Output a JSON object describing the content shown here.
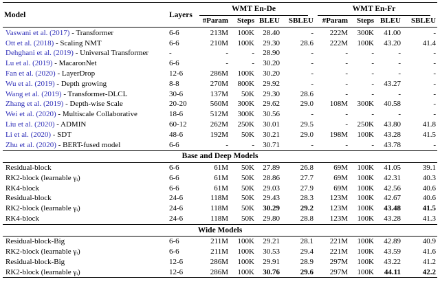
{
  "table": {
    "citation_color": "#2e2eb8",
    "col_headers": {
      "model": "Model",
      "layers": "Layers",
      "group_ende": "WMT En-De",
      "group_enfr": "WMT En-Fr",
      "subheaders": [
        "#Param",
        "Steps",
        "BLEU",
        "SBLEU",
        "#Param",
        "Steps",
        "BLEU",
        "SBLEU"
      ]
    },
    "sections": [
      {
        "header": "",
        "rows": [
          {
            "model_cite": "Vaswani et al. (2017)",
            "model_rest": " - Transformer",
            "layers": "6-6",
            "cells": [
              "213M",
              "100K",
              "28.40",
              "-",
              "222M",
              "300K",
              "41.00",
              "-"
            ],
            "bold": []
          },
          {
            "model_cite": "Ott et al. (2018)",
            "model_rest": " - Scaling NMT",
            "layers": "6-6",
            "cells": [
              "210M",
              "100K",
              "29.30",
              "28.6",
              "222M",
              "100K",
              "43.20",
              "41.4"
            ],
            "bold": []
          },
          {
            "model_cite": "Dehghani et al. (2019)",
            "model_rest": " - Universal Transformer",
            "layers": "-",
            "cells": [
              "-",
              "-",
              "28.90",
              "-",
              "-",
              "-",
              "-",
              "-"
            ],
            "bold": []
          },
          {
            "model_cite": "Lu et al. (2019)",
            "model_rest": " - MacaronNet",
            "layers": "6-6",
            "cells": [
              "-",
              "-",
              "30.20",
              "-",
              "-",
              "-",
              "-",
              "-"
            ],
            "bold": []
          },
          {
            "model_cite": "Fan et al. (2020)",
            "model_rest": " - LayerDrop",
            "layers": "12-6",
            "cells": [
              "286M",
              "100K",
              "30.20",
              "-",
              "-",
              "-",
              "-",
              "-"
            ],
            "bold": []
          },
          {
            "model_cite": "Wu et al. (2019)",
            "model_rest": " - Depth growing",
            "layers": "8-8",
            "cells": [
              "270M",
              "800K",
              "29.92",
              "-",
              "-",
              "-",
              "43.27",
              "-"
            ],
            "bold": []
          },
          {
            "model_cite": "Wang et al. (2019)",
            "model_rest": " - Transformer-DLCL",
            "layers": "30-6",
            "cells": [
              "137M",
              "50K",
              "29.30",
              "28.6",
              "-",
              "-",
              "-",
              "-"
            ],
            "bold": []
          },
          {
            "model_cite": "Zhang et al. (2019)",
            "model_rest": " - Depth-wise Scale",
            "layers": "20-20",
            "cells": [
              "560M",
              "300K",
              "29.62",
              "29.0",
              "108M",
              "300K",
              "40.58",
              "-"
            ],
            "bold": []
          },
          {
            "model_cite": "Wei et al. (2020)",
            "model_rest": " - Multiscale Collaborative",
            "layers": "18-6",
            "cells": [
              "512M",
              "300K",
              "30.56",
              "-",
              "-",
              "-",
              "-",
              "-"
            ],
            "bold": []
          },
          {
            "model_cite": "Liu et al. (2020)",
            "model_rest": " - ADMIN",
            "layers": "60-12",
            "cells": [
              "262M",
              "250K",
              "30.01",
              "29.5",
              "-",
              "250K",
              "43.80",
              "41.8"
            ],
            "bold": []
          },
          {
            "model_cite": "Li et al. (2020)",
            "model_rest": " - SDT",
            "layers": "48-6",
            "cells": [
              "192M",
              "50K",
              "30.21",
              "29.0",
              "198M",
              "100K",
              "43.28",
              "41.5"
            ],
            "bold": []
          },
          {
            "model_cite": "Zhu et al. (2020)",
            "model_rest": " - BERT-fused model",
            "layers": "6-6",
            "cells": [
              "-",
              "-",
              "30.71",
              "-",
              "-",
              "-",
              "43.78",
              "-"
            ],
            "bold": []
          }
        ]
      },
      {
        "header": "Base and Deep Models",
        "rows": [
          {
            "model_cite": "",
            "model_rest": "Residual-block",
            "layers": "6-6",
            "cells": [
              "61M",
              "50K",
              "27.89",
              "26.8",
              "69M",
              "100K",
              "41.05",
              "39.1"
            ],
            "bold": []
          },
          {
            "model_cite": "",
            "model_rest": "RK2-block (learnable γᵢ)",
            "layers": "6-6",
            "cells": [
              "61M",
              "50K",
              "28.86",
              "27.7",
              "69M",
              "100K",
              "42.31",
              "40.3"
            ],
            "bold": []
          },
          {
            "model_cite": "",
            "model_rest": "RK4-block",
            "layers": "6-6",
            "cells": [
              "61M",
              "50K",
              "29.03",
              "27.9",
              "69M",
              "100K",
              "42.56",
              "40.6"
            ],
            "bold": []
          },
          {
            "model_cite": "",
            "model_rest": "Residual-block",
            "layers": "24-6",
            "cells": [
              "118M",
              "50K",
              "29.43",
              "28.3",
              "123M",
              "100K",
              "42.67",
              "40.6"
            ],
            "bold": []
          },
          {
            "model_cite": "",
            "model_rest": "RK2-block (learnable γᵢ)",
            "layers": "24-6",
            "cells": [
              "118M",
              "50K",
              "30.29",
              "29.2",
              "123M",
              "100K",
              "43.48",
              "41.5"
            ],
            "bold": [
              2,
              3,
              6,
              7
            ]
          },
          {
            "model_cite": "",
            "model_rest": "RK4-block",
            "layers": "24-6",
            "cells": [
              "118M",
              "50K",
              "29.80",
              "28.8",
              "123M",
              "100K",
              "43.28",
              "41.3"
            ],
            "bold": []
          }
        ]
      },
      {
        "header": "Wide Models",
        "rows": [
          {
            "model_cite": "",
            "model_rest": "Residual-block-Big",
            "layers": "6-6",
            "cells": [
              "211M",
              "100K",
              "29.21",
              "28.1",
              "221M",
              "100K",
              "42.89",
              "40.9"
            ],
            "bold": []
          },
          {
            "model_cite": "",
            "model_rest": "RK2-block (learnable γᵢ)",
            "layers": "6-6",
            "cells": [
              "211M",
              "100K",
              "30.53",
              "29.4",
              "221M",
              "100K",
              "43.59",
              "41.6"
            ],
            "bold": []
          },
          {
            "model_cite": "",
            "model_rest": "Residual-block-Big",
            "layers": "12-6",
            "cells": [
              "286M",
              "100K",
              "29.91",
              "28.9",
              "297M",
              "100K",
              "43.22",
              "41.2"
            ],
            "bold": []
          },
          {
            "model_cite": "",
            "model_rest": "RK2-block (learnable γᵢ)",
            "layers": "12-6",
            "cells": [
              "286M",
              "100K",
              "30.76",
              "29.6",
              "297M",
              "100K",
              "44.11",
              "42.2"
            ],
            "bold": [
              2,
              3,
              6,
              7
            ]
          }
        ]
      }
    ]
  }
}
